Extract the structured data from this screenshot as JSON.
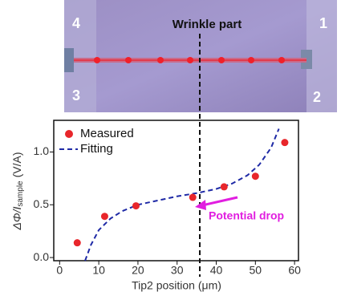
{
  "photo_labels": {
    "top_left": "4",
    "top_right": "1",
    "bottom_left": "3",
    "bottom_right": "2"
  },
  "annotation": "Wrinkle part",
  "chart_data": {
    "type": "scatter-line",
    "xlabel": "Tip2 position (μm)",
    "ylabel": {
      "main": "ΔΦ/I",
      "sub": "sample",
      "unit": "(V/A)"
    },
    "xlim": [
      -1.5,
      61
    ],
    "xticks": [
      0,
      10,
      20,
      30,
      40,
      50,
      60
    ],
    "ylim": [
      -0.03,
      1.3
    ],
    "yticks": [
      {
        "value": 0,
        "label": "0.0"
      },
      {
        "value": 0.5,
        "label": "0.5"
      },
      {
        "value": 1,
        "label": "1.0"
      }
    ],
    "series": [
      {
        "name": "Measured",
        "color": "#e8262b",
        "x": [
          4.5,
          11.5,
          19.5,
          34,
          42,
          50,
          57.5
        ],
        "values": [
          0.14,
          0.39,
          0.49,
          0.57,
          0.67,
          0.77,
          1.09
        ]
      },
      {
        "name": "Fitting",
        "color": "#1f2aa6",
        "x": [
          6.5,
          8,
          10,
          13,
          16,
          20,
          25,
          30,
          35,
          40,
          44,
          48,
          51,
          54,
          56
        ],
        "values": [
          -0.03,
          0.12,
          0.26,
          0.37,
          0.44,
          0.5,
          0.54,
          0.58,
          0.61,
          0.65,
          0.7,
          0.78,
          0.88,
          1.04,
          1.22
        ]
      }
    ],
    "callout": "Potential drop"
  }
}
